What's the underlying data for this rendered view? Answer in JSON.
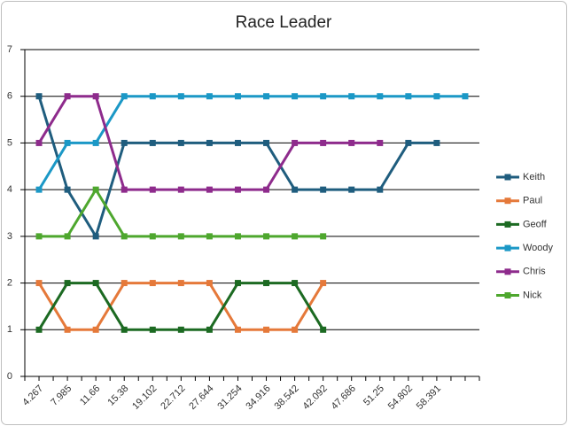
{
  "chart_data": {
    "type": "line",
    "title": "Race Leader",
    "categories": [
      "4.267",
      "7.985",
      "11.66",
      "15.38",
      "19.102",
      "22.712",
      "27.644",
      "31.254",
      "34.916",
      "38.542",
      "42.092",
      "47.686",
      "51.25",
      "54.802",
      "58.391",
      null
    ],
    "series": [
      {
        "name": "Keith",
        "color": "#1f5d7e",
        "values": [
          6,
          4,
          3,
          5,
          5,
          5,
          5,
          5,
          5,
          4,
          4,
          4,
          4,
          5,
          5,
          null
        ]
      },
      {
        "name": "Paul",
        "color": "#e5793a",
        "values": [
          2,
          1,
          1,
          2,
          2,
          2,
          2,
          1,
          1,
          1,
          2,
          null,
          null,
          null,
          null,
          null
        ]
      },
      {
        "name": "Geoff",
        "color": "#1c6a22",
        "values": [
          1,
          2,
          2,
          1,
          1,
          1,
          1,
          2,
          2,
          2,
          1,
          null,
          null,
          null,
          null,
          null
        ]
      },
      {
        "name": "Woody",
        "color": "#1b98c6",
        "values": [
          4,
          5,
          5,
          6,
          6,
          6,
          6,
          6,
          6,
          6,
          6,
          6,
          6,
          6,
          6,
          6
        ]
      },
      {
        "name": "Chris",
        "color": "#8e2b8c",
        "values": [
          5,
          6,
          6,
          4,
          4,
          4,
          4,
          4,
          4,
          5,
          5,
          5,
          5,
          null,
          null,
          null
        ]
      },
      {
        "name": "Nick",
        "color": "#4ea72e",
        "values": [
          3,
          3,
          4,
          3,
          3,
          3,
          3,
          3,
          3,
          3,
          3,
          null,
          null,
          null,
          null,
          null
        ]
      }
    ],
    "ylim": [
      0,
      7
    ],
    "yticks": [
      0,
      1,
      2,
      3,
      4,
      5,
      6,
      7
    ],
    "grid": true,
    "legend": "right"
  }
}
